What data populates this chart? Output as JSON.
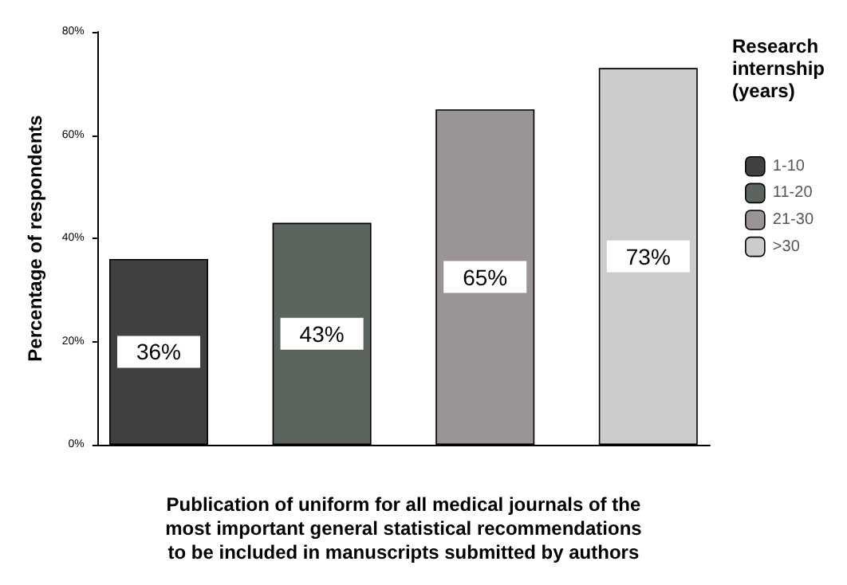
{
  "chart_data": {
    "type": "bar",
    "ylabel": "Percentage of respondents",
    "xlabel": "Publication of uniform for all medical journals of the\nmost important general statistical recommendations\nto be included in manuscripts submitted by authors",
    "legend_title": "Research\ninternship\n(years)",
    "categories": [
      null
    ],
    "series": [
      {
        "name": "1-10",
        "color": "#404040",
        "values": [
          36
        ],
        "value_labels": [
          "36%"
        ]
      },
      {
        "name": "11-20",
        "color": "#5b645d",
        "values": [
          43
        ],
        "value_labels": [
          "43%"
        ]
      },
      {
        "name": "21-30",
        "color": "#9a9494",
        "values": [
          65
        ],
        "value_labels": [
          "65%"
        ]
      },
      {
        "name": ">30",
        "color": "#cccccc",
        "values": [
          73
        ],
        "value_labels": [
          "73%"
        ]
      }
    ],
    "ylim": [
      0,
      80
    ],
    "yticks": [
      {
        "value": 0,
        "label": "0%"
      },
      {
        "value": 20,
        "label": "20%"
      },
      {
        "value": 40,
        "label": "40%"
      },
      {
        "value": 60,
        "label": "60%"
      },
      {
        "value": 80,
        "label": "80%"
      }
    ],
    "grid": false,
    "legend": "right"
  }
}
